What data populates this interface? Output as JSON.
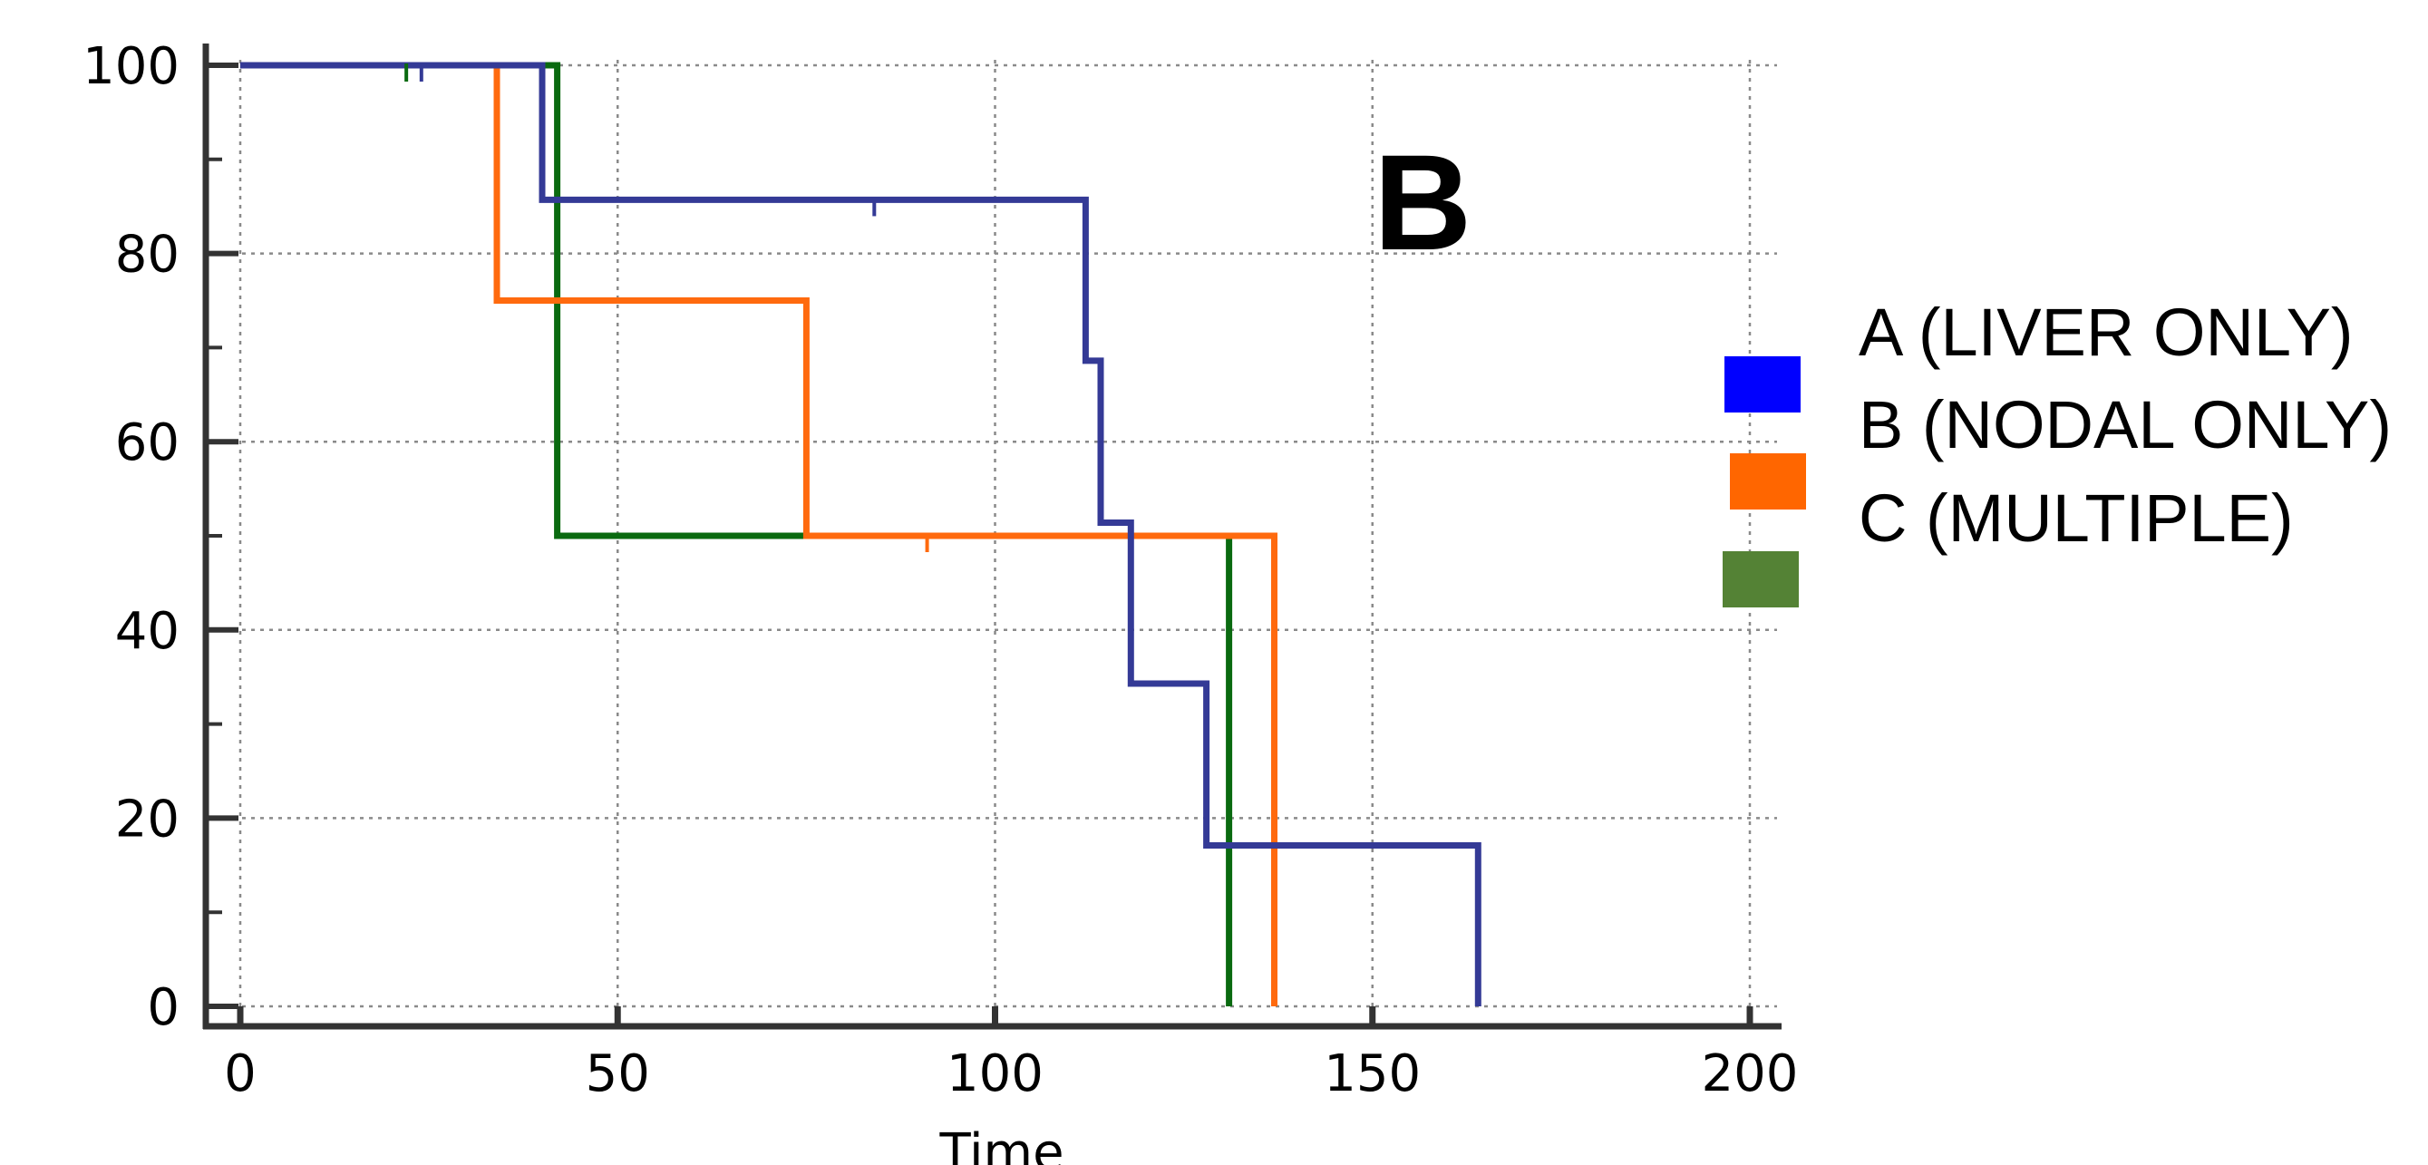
{
  "chart_data": {
    "type": "line",
    "step": true,
    "panel_label": "B",
    "xlabel": "Time",
    "ylabel": "",
    "xlim": [
      0,
      200
    ],
    "ylim": [
      0,
      100
    ],
    "x_ticks": [
      0,
      50,
      100,
      150,
      200
    ],
    "y_ticks": [
      0,
      20,
      40,
      60,
      80,
      100
    ],
    "grid": true,
    "legend_position": "right",
    "series": [
      {
        "name": "A (LIVER ONLY)",
        "color": "#343a96",
        "legend_color": "#0000ff",
        "points": [
          [
            0,
            100
          ],
          [
            40,
            100
          ],
          [
            40,
            85.7
          ],
          [
            112,
            85.7
          ],
          [
            112,
            68.6
          ],
          [
            114,
            68.6
          ],
          [
            114,
            51.4
          ],
          [
            118,
            51.4
          ],
          [
            118,
            34.3
          ],
          [
            128,
            34.3
          ],
          [
            128,
            17.1
          ],
          [
            164,
            17.1
          ],
          [
            164,
            0
          ]
        ],
        "censored": [
          [
            24,
            100
          ],
          [
            84,
            85.7
          ]
        ]
      },
      {
        "name": "B (NODAL ONLY)",
        "color": "#ff6a0e",
        "legend_color": "#ff6600",
        "points": [
          [
            0,
            100
          ],
          [
            34,
            100
          ],
          [
            34,
            75
          ],
          [
            75,
            75
          ],
          [
            75,
            50
          ],
          [
            137,
            50
          ],
          [
            137,
            0
          ]
        ],
        "censored": [
          [
            91,
            50
          ]
        ]
      },
      {
        "name": "C (MULTIPLE)",
        "color": "#0a6a10",
        "legend_color": "#548235",
        "points": [
          [
            0,
            100
          ],
          [
            42,
            100
          ],
          [
            42,
            50
          ],
          [
            131,
            50
          ],
          [
            131,
            0
          ]
        ],
        "censored": [
          [
            22,
            100
          ]
        ]
      }
    ]
  }
}
